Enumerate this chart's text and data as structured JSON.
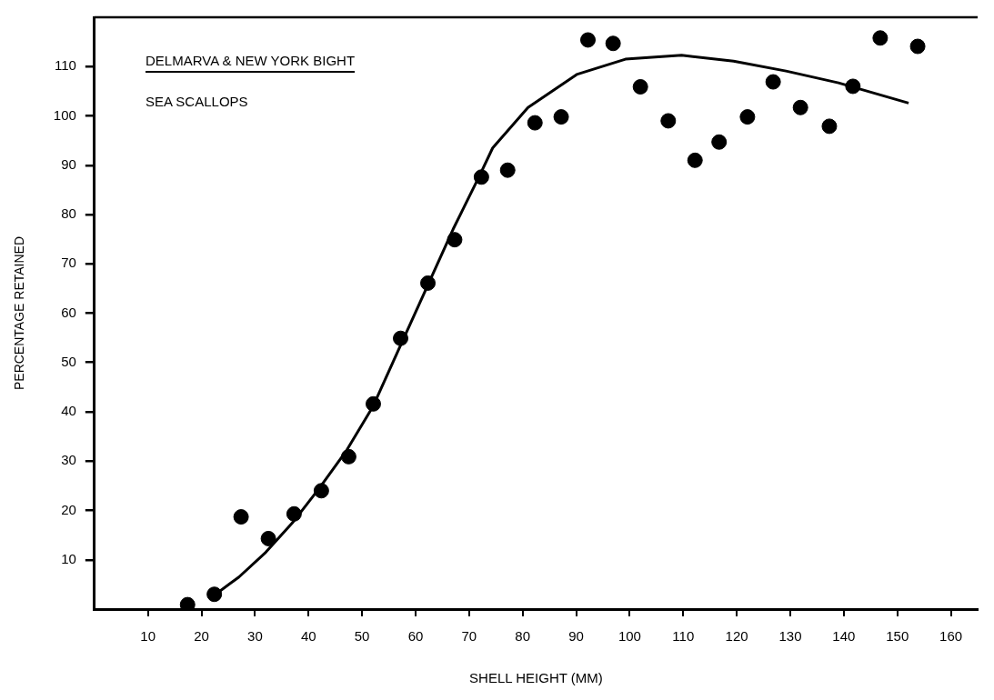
{
  "chart_data": {
    "type": "scatter",
    "xlabel": "SHELL HEIGHT (MM)",
    "ylabel": "PERCENTAGE RETAINED",
    "annotations": [
      "DELMARVA & NEW YORK BIGHT",
      "SEA SCALLOPS"
    ],
    "xlim": [
      0,
      165
    ],
    "ylim": [
      0,
      120
    ],
    "xticks": [
      10,
      20,
      30,
      40,
      50,
      60,
      70,
      80,
      90,
      100,
      110,
      120,
      130,
      140,
      150,
      160
    ],
    "yticks": [
      10,
      20,
      30,
      40,
      50,
      60,
      70,
      80,
      90,
      100,
      110
    ],
    "grid": false,
    "legend": false,
    "series": [
      {
        "color": "#000000",
        "marker": "circle",
        "x": [
          17.4,
          22.4,
          27.4,
          32.5,
          37.3,
          42.4,
          47.5,
          52.1,
          57.2,
          62.3,
          67.3,
          72.3,
          77.2,
          82.3,
          87.2,
          92.2,
          96.9,
          102.0,
          107.2,
          112.2,
          116.7,
          122.0,
          126.8,
          131.9,
          137.3,
          141.7,
          146.8,
          153.8
        ],
        "values": [
          0.9,
          3.0,
          18.7,
          14.3,
          19.3,
          24.0,
          30.9,
          41.6,
          54.9,
          66.1,
          74.9,
          87.6,
          89.0,
          98.6,
          99.8,
          115.4,
          114.7,
          105.9,
          99.0,
          91.0,
          94.7,
          99.8,
          106.9,
          101.7,
          97.9,
          106.0,
          115.8,
          114.1
        ]
      },
      {
        "type": "line",
        "color": "#000000",
        "marker": "none",
        "line_style": "solid",
        "x": [
          22,
          27,
          32,
          37,
          42,
          47,
          52,
          57,
          62,
          67,
          72,
          74.4,
          81,
          90.1,
          99.2,
          109.7,
          119.4,
          129.2,
          139,
          152.1
        ],
        "values": [
          2.5,
          6.5,
          11.5,
          17.5,
          24.5,
          32,
          41,
          53,
          65,
          77,
          88,
          93.5,
          101.7,
          108.4,
          111.5,
          112.3,
          111.1,
          109.1,
          106.7,
          102.6
        ]
      }
    ]
  }
}
